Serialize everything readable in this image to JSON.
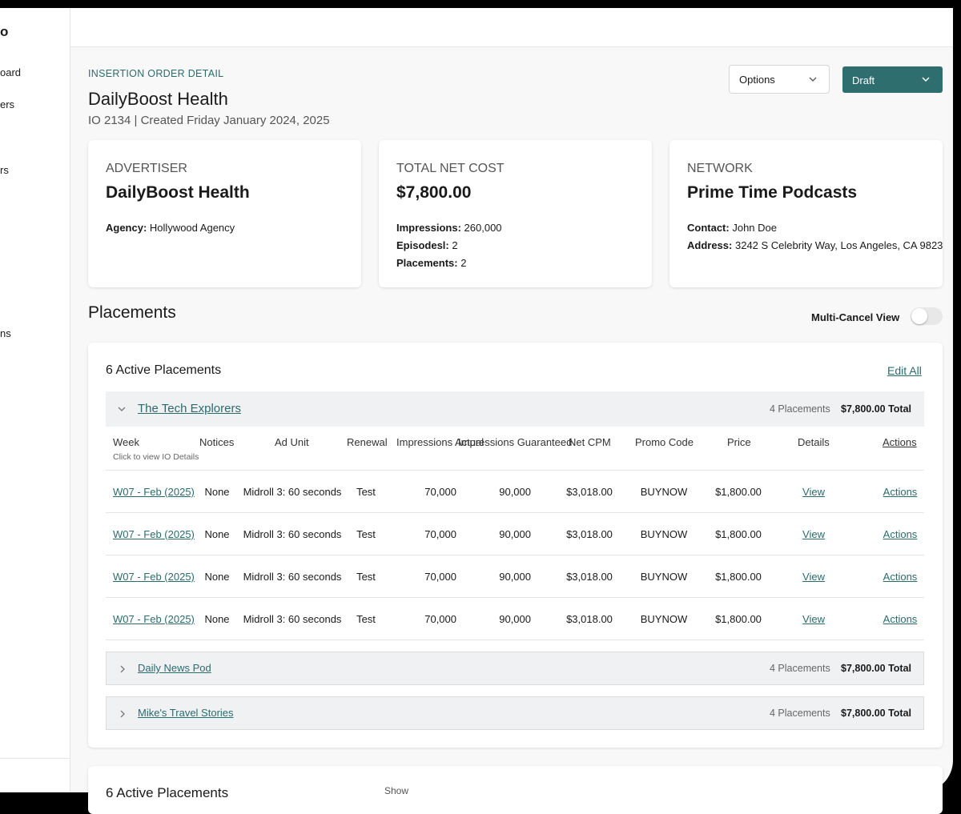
{
  "sidebar": {
    "items": [
      "o",
      "oard",
      "ers",
      "rs",
      "ns"
    ]
  },
  "header": {
    "eyebrow": "INSERTION ORDER DETAIL",
    "title": "DailyBoost Health",
    "subtitle": "IO 2134 |  Created Friday January 2024, 2025",
    "options": "Options",
    "status": "Draft"
  },
  "cards": [
    {
      "label": "ADVERTISER",
      "value": "DailyBoost Health",
      "details": [
        {
          "key": "Agency:",
          "value": "Hollywood Agency"
        }
      ]
    },
    {
      "label": "TOTAL NET COST",
      "value": "$7,800.00",
      "details": [
        {
          "key": "Impressions:",
          "value": "260,000"
        },
        {
          "key": "Episodesl:",
          "value": "2"
        },
        {
          "key": "Placements:",
          "value": "2"
        }
      ]
    },
    {
      "label": "NETWORK",
      "value": "Prime Time Podcasts",
      "details": [
        {
          "key": "Contact:",
          "value": "John Doe"
        },
        {
          "key": "Address:",
          "value": "3242 S Celebrity Way, Los Angeles, CA 9823"
        }
      ]
    }
  ],
  "placements": {
    "title": "Placements",
    "toggle_label": "Multi-Cancel View",
    "panel_title": "6 Active Placements",
    "edit_all": "Edit All",
    "groups": [
      {
        "name": "The Tech Explorers",
        "count": "4 Placements",
        "total": "$7,800.00 Total"
      },
      {
        "name": "Daily News Pod",
        "count": "4 Placements",
        "total": "$7,800.00 Total"
      },
      {
        "name": "Mike's Travel Stories",
        "count": "4 Placements",
        "total": "$7,800.00 Total"
      }
    ],
    "columns": [
      "Week",
      "Notices",
      "Ad Unit",
      "Renewal",
      "Impressions Actual",
      "Impressions Guaranteed",
      "Net CPM",
      "Promo Code",
      "Price",
      "Details",
      "Actions"
    ],
    "column_hint": "Click to view IO Details",
    "rows": [
      [
        "W07 - Feb (2025)",
        "None",
        "Midroll 3: 60 seconds",
        "Test",
        "70,000",
        "90,000",
        "$3,018.00",
        "BUYNOW",
        "$1,800.00",
        "View",
        "Actions"
      ],
      [
        "W07 - Feb (2025)",
        "None",
        "Midroll 3: 60 seconds",
        "Test",
        "70,000",
        "90,000",
        "$3,018.00",
        "BUYNOW",
        "$1,800.00",
        "View",
        "Actions"
      ],
      [
        "W07 - Feb (2025)",
        "None",
        "Midroll 3: 60 seconds",
        "Test",
        "70,000",
        "90,000",
        "$3,018.00",
        "BUYNOW",
        "$1,800.00",
        "View",
        "Actions"
      ],
      [
        "W07 - Feb (2025)",
        "None",
        "Midroll 3: 60 seconds",
        "Test",
        "70,000",
        "90,000",
        "$3,018.00",
        "BUYNOW",
        "$1,800.00",
        "View",
        "Actions"
      ]
    ]
  },
  "second_panel": {
    "title": "6 Active Placements",
    "show": "Show"
  }
}
